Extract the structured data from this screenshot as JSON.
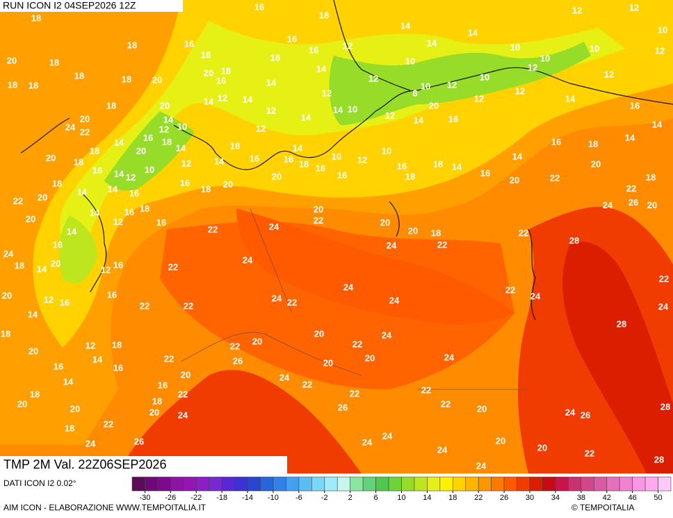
{
  "header": {
    "run": "RUN ICON I2 04SEP2026 12Z",
    "title": "TMP 2M Val. 22Z06SEP2026"
  },
  "footer": {
    "source": "DATI ICON I2 0.02°",
    "credit": "AIM ICON - ELABORAZIONE WWW.TEMPOITALIA.IT",
    "copyright": "© TEMPOITALIA"
  },
  "legend": {
    "lim": [
      -32,
      52
    ],
    "ticks": [
      -30,
      -26,
      -22,
      -18,
      -14,
      -10,
      -6,
      -2,
      2,
      6,
      10,
      14,
      18,
      22,
      26,
      30,
      34,
      38,
      42,
      46,
      50
    ],
    "colors": [
      "#5c0a5c",
      "#6e0a78",
      "#7d0a8c",
      "#8c14a0",
      "#9614b4",
      "#8c1ec8",
      "#7828d2",
      "#5a28d2",
      "#3c32d2",
      "#2846d2",
      "#2864dc",
      "#3282e6",
      "#46a0f0",
      "#5abef5",
      "#78d7fa",
      "#a0ebfa",
      "#c8f5f0",
      "#8ce6a0",
      "#64d278",
      "#50c850",
      "#6ed23c",
      "#96dc28",
      "#bee61e",
      "#e6f014",
      "#fff000",
      "#ffd200",
      "#ffb400",
      "#ff9600",
      "#ff7800",
      "#ff5a00",
      "#f03c00",
      "#dc1e00",
      "#c80a14",
      "#c8144b",
      "#c8326e",
      "#d2468c",
      "#dc5aa5",
      "#e66ebe",
      "#f082d2",
      "#fa96e6",
      "#ffaaf0",
      "#ffc8fa"
    ]
  },
  "map": {
    "temperature_labels": [
      18,
      20,
      18,
      18,
      18,
      18,
      18,
      18,
      18,
      20,
      20,
      24,
      20,
      18,
      22,
      20,
      20,
      24,
      18,
      20,
      20,
      12,
      18,
      20,
      20,
      18,
      24,
      26,
      22,
      20,
      24,
      22,
      20,
      22,
      26,
      20,
      22,
      22,
      22,
      22,
      22,
      24,
      24,
      24,
      22,
      20,
      22,
      24,
      24,
      24,
      20,
      22,
      20,
      24,
      20,
      24,
      22,
      26,
      22,
      22,
      22,
      20,
      20,
      20,
      22,
      24,
      24,
      24,
      24,
      24,
      26,
      28,
      28,
      28,
      28,
      22,
      24,
      22,
      24,
      20,
      20,
      18,
      22,
      20,
      22,
      20,
      18,
      16,
      14,
      16,
      14,
      18,
      18,
      16,
      10,
      12,
      16,
      10,
      16,
      18,
      16,
      20,
      20,
      18,
      16,
      16,
      18,
      16,
      12,
      14,
      14,
      16,
      14,
      12,
      16,
      16,
      16,
      14,
      12,
      18,
      14,
      16,
      16,
      14,
      18,
      20,
      16,
      18,
      16,
      18,
      16,
      12,
      10,
      14,
      14,
      14,
      10,
      10,
      12,
      12,
      10,
      12,
      10,
      12,
      12,
      14,
      16,
      14,
      14,
      22,
      26,
      20,
      24,
      22,
      24,
      18,
      10,
      12,
      12,
      12,
      20,
      16,
      14,
      12,
      10,
      8,
      12,
      10,
      12,
      14,
      14,
      12,
      12,
      18,
      16,
      14,
      14,
      16,
      16,
      14,
      14,
      12,
      14,
      16,
      18,
      20,
      18,
      16,
      20,
      14,
      10,
      12,
      16,
      18,
      14,
      20,
      10,
      12,
      14,
      14,
      18,
      16,
      18,
      14,
      16,
      12,
      14,
      14,
      22
    ]
  }
}
